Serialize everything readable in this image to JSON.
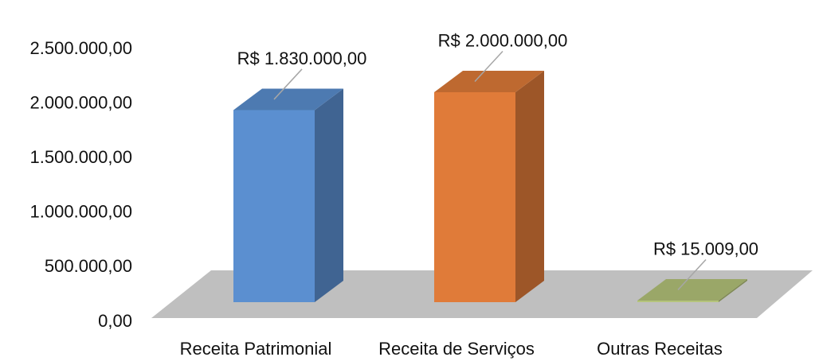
{
  "chart_data": {
    "type": "bar3d",
    "categories": [
      "Receita Patrimonial",
      "Receita de Serviços",
      "Outras Receitas"
    ],
    "values": [
      1830000,
      2000000,
      15009
    ],
    "value_labels": [
      "R$ 1.830.000,00",
      "R$ 2.000.000,00",
      "R$ 15.009,00"
    ],
    "colors": [
      "#5b8fd0",
      "#e07b39",
      "#b5c47a"
    ],
    "ylim": [
      0,
      2500000
    ],
    "yticks": [
      {
        "value": 0,
        "label": "0,00"
      },
      {
        "value": 500000,
        "label": "500.000,00"
      },
      {
        "value": 1000000,
        "label": "1.000.000,00"
      },
      {
        "value": 1500000,
        "label": "1.500.000,00"
      },
      {
        "value": 2000000,
        "label": "2.000.000,00"
      },
      {
        "value": 2500000,
        "label": "2.500.000,00"
      }
    ]
  }
}
